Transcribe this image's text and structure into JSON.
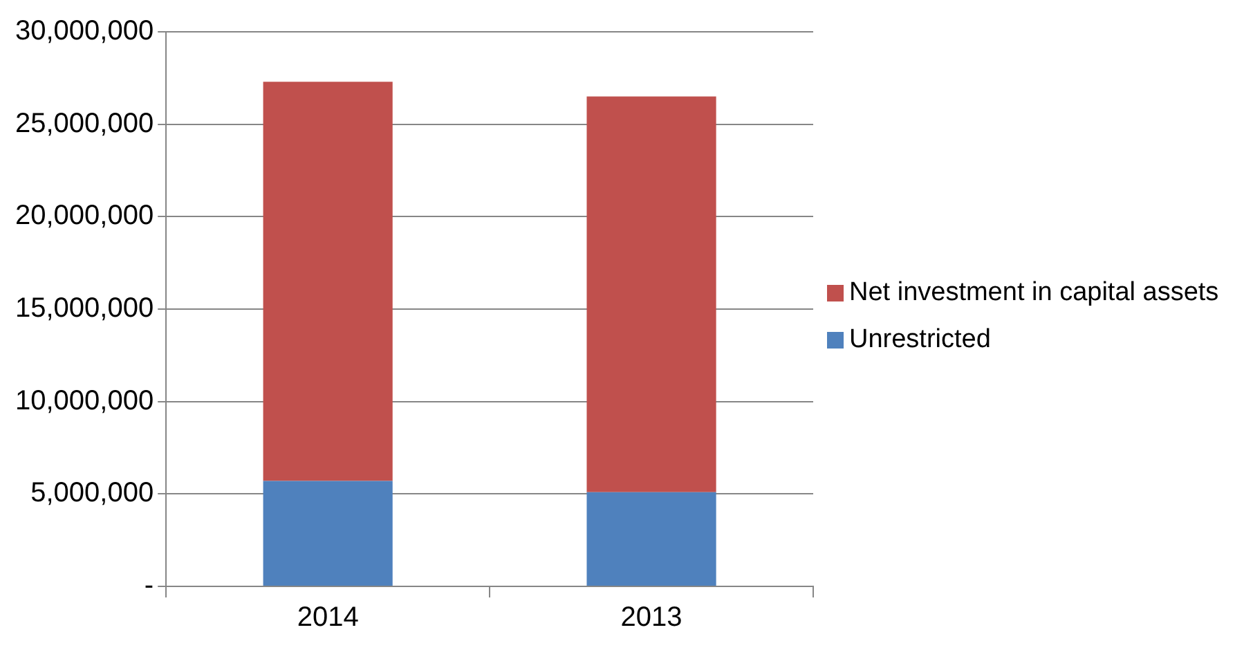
{
  "chart_data": {
    "type": "bar",
    "stacked": true,
    "categories": [
      "2014",
      "2013"
    ],
    "series": [
      {
        "name": "Unrestricted",
        "color": "#4f81bd",
        "values": [
          5700000,
          5100000
        ]
      },
      {
        "name": "Net investment in capital assets",
        "color": "#c0504d",
        "values": [
          21600000,
          21400000
        ]
      }
    ],
    "ylim": [
      0,
      30000000
    ],
    "yticks": [
      {
        "value": 0,
        "label": "-"
      },
      {
        "value": 5000000,
        "label": "5,000,000"
      },
      {
        "value": 10000000,
        "label": "10,000,000"
      },
      {
        "value": 15000000,
        "label": "15,000,000"
      },
      {
        "value": 20000000,
        "label": "20,000,000"
      },
      {
        "value": 25000000,
        "label": "25,000,000"
      },
      {
        "value": 30000000,
        "label": "30,000,000"
      }
    ],
    "grid": "y",
    "legend": "right"
  }
}
